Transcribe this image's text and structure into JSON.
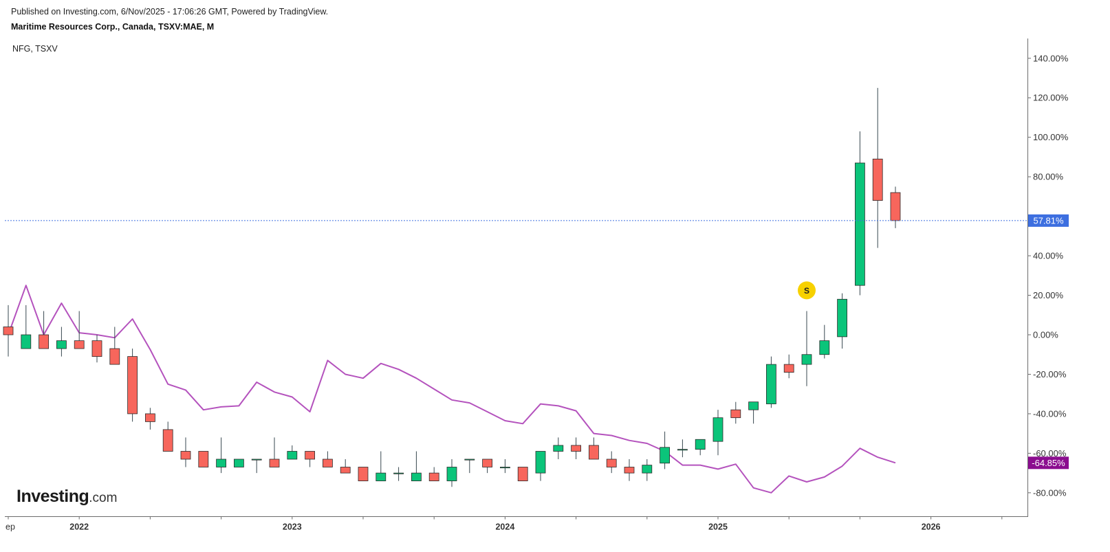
{
  "header": {
    "published": "Published on Investing.com, 6/Nov/2025 - 17:06:26 GMT, Powered by TradingView.",
    "instrument": "Maritime Resources Corp., Canada, TSXV:MAE, M",
    "comparison_symbol": "NFG, TSXV"
  },
  "logo": {
    "brand": "Investing",
    "suffix": ".com"
  },
  "colors": {
    "up": "#0bc47a",
    "down": "#f7665c",
    "wick": "#37474f",
    "compare_line": "#b452bd",
    "last_price_badge": "#3d6fe0",
    "compare_badge": "#8b0d8f",
    "marker": "#f7d100"
  },
  "chart_data": {
    "type": "candlestick",
    "interval": "monthly",
    "y_unit": "%",
    "ylim": [
      -92,
      150
    ],
    "y_ticks": [
      140,
      120,
      100,
      80,
      40,
      20,
      0,
      -20,
      -40,
      -60,
      -80
    ],
    "y_tick_labels": [
      "140.00%",
      "120.00%",
      "100.00%",
      "80.00%",
      "40.00%",
      "20.00%",
      "0.00%",
      "-20.00%",
      "-40.00%",
      "-60.00%",
      "-80.00%"
    ],
    "x_labels": [
      {
        "label": "ep",
        "period": 0
      },
      {
        "label": "2022",
        "period": 4
      },
      {
        "label": "2023",
        "period": 16
      },
      {
        "label": "2024",
        "period": 28
      },
      {
        "label": "2025",
        "period": 40
      },
      {
        "label": "2026",
        "period": 52
      }
    ],
    "x_minor_ticks": [
      8,
      12,
      20,
      24,
      32,
      36,
      44,
      48,
      56
    ],
    "periods_total": 58,
    "series": [
      {
        "name": "Maritime Resources Corp.",
        "kind": "ohlc",
        "values": [
          {
            "o": 4,
            "h": 15,
            "l": -11,
            "c": 0
          },
          {
            "o": -7,
            "h": 15,
            "l": -7,
            "c": 0
          },
          {
            "o": 0,
            "h": 12,
            "l": -7,
            "c": -7
          },
          {
            "o": -7,
            "h": 4,
            "l": -11,
            "c": -3
          },
          {
            "o": -3,
            "h": 12,
            "l": -7,
            "c": -7
          },
          {
            "o": -3,
            "h": 0,
            "l": -14,
            "c": -11
          },
          {
            "o": -7,
            "h": 4,
            "l": -15,
            "c": -15
          },
          {
            "o": -11,
            "h": -7,
            "l": -44,
            "c": -40
          },
          {
            "o": -40,
            "h": -37,
            "l": -48,
            "c": -44
          },
          {
            "o": -48,
            "h": -44,
            "l": -59,
            "c": -59
          },
          {
            "o": -59,
            "h": -52,
            "l": -67,
            "c": -63
          },
          {
            "o": -59,
            "h": -59,
            "l": -67,
            "c": -67
          },
          {
            "o": -67,
            "h": -52,
            "l": -70,
            "c": -63
          },
          {
            "o": -67,
            "h": -63,
            "l": -67,
            "c": -63
          },
          {
            "o": -63,
            "h": -63,
            "l": -70,
            "c": -63
          },
          {
            "o": -63,
            "h": -52,
            "l": -67,
            "c": -67
          },
          {
            "o": -63,
            "h": -56,
            "l": -63,
            "c": -59
          },
          {
            "o": -59,
            "h": -59,
            "l": -67,
            "c": -63
          },
          {
            "o": -63,
            "h": -59,
            "l": -67,
            "c": -67
          },
          {
            "o": -67,
            "h": -63,
            "l": -70,
            "c": -70
          },
          {
            "o": -67,
            "h": -67,
            "l": -74,
            "c": -74
          },
          {
            "o": -74,
            "h": -59,
            "l": -74,
            "c": -70
          },
          {
            "o": -70,
            "h": -67,
            "l": -74,
            "c": -70
          },
          {
            "o": -74,
            "h": -59,
            "l": -74,
            "c": -70
          },
          {
            "o": -70,
            "h": -67,
            "l": -74,
            "c": -74
          },
          {
            "o": -74,
            "h": -63,
            "l": -77,
            "c": -67
          },
          {
            "o": -63,
            "h": -63,
            "l": -70,
            "c": -63
          },
          {
            "o": -63,
            "h": -63,
            "l": -70,
            "c": -67
          },
          {
            "o": -67,
            "h": -63,
            "l": -70,
            "c": -67
          },
          {
            "o": -67,
            "h": -67,
            "l": -74,
            "c": -74
          },
          {
            "o": -70,
            "h": -59,
            "l": -74,
            "c": -59
          },
          {
            "o": -59,
            "h": -52,
            "l": -63,
            "c": -56
          },
          {
            "o": -56,
            "h": -52,
            "l": -63,
            "c": -59
          },
          {
            "o": -56,
            "h": -52,
            "l": -63,
            "c": -63
          },
          {
            "o": -63,
            "h": -59,
            "l": -70,
            "c": -67
          },
          {
            "o": -67,
            "h": -63,
            "l": -74,
            "c": -70
          },
          {
            "o": -70,
            "h": -63,
            "l": -74,
            "c": -66
          },
          {
            "o": -65,
            "h": -49,
            "l": -68,
            "c": -57
          },
          {
            "o": -58,
            "h": -53,
            "l": -62,
            "c": -58
          },
          {
            "o": -58,
            "h": -53,
            "l": -61,
            "c": -53
          },
          {
            "o": -54,
            "h": -38,
            "l": -61,
            "c": -42
          },
          {
            "o": -38,
            "h": -34,
            "l": -45,
            "c": -42
          },
          {
            "o": -38,
            "h": -34,
            "l": -45,
            "c": -34
          },
          {
            "o": -35,
            "h": -11,
            "l": -37,
            "c": -15
          },
          {
            "o": -15,
            "h": -10,
            "l": -22,
            "c": -19
          },
          {
            "o": -15,
            "h": 12,
            "l": -26,
            "c": -10
          },
          {
            "o": -10,
            "h": 5,
            "l": -12,
            "c": -3
          },
          {
            "o": -1,
            "h": 21,
            "l": -7,
            "c": 18
          },
          {
            "o": 25,
            "h": 103,
            "l": 20,
            "c": 87
          },
          {
            "o": 89,
            "h": 125,
            "l": 44,
            "c": 68
          },
          {
            "o": 72,
            "h": 75,
            "l": 54,
            "c": 57.81
          }
        ],
        "last_value_label": "57.81%"
      },
      {
        "name": "NFG, TSXV",
        "kind": "line",
        "values": [
          0,
          25,
          0,
          16,
          1,
          0,
          -1.5,
          8,
          -7.5,
          -25,
          -28,
          -38,
          -36.5,
          -36,
          -24,
          -29,
          -31.5,
          -39,
          -13,
          -20,
          -22,
          -14.5,
          -17.5,
          -22,
          -27.5,
          -33,
          -34.5,
          -39,
          -43.5,
          -45,
          -35,
          -36,
          -38.5,
          -50,
          -51,
          -53.5,
          -55,
          -59,
          -66,
          -66,
          -68,
          -65.5,
          -77.5,
          -80,
          -71.5,
          -74.5,
          -72,
          -66.5,
          -57.5,
          -62,
          -64.85
        ],
        "last_value_label": "-64.85%"
      }
    ],
    "annotations": [
      {
        "type": "marker",
        "label": "S",
        "period": 45,
        "y": 22.5
      }
    ]
  }
}
